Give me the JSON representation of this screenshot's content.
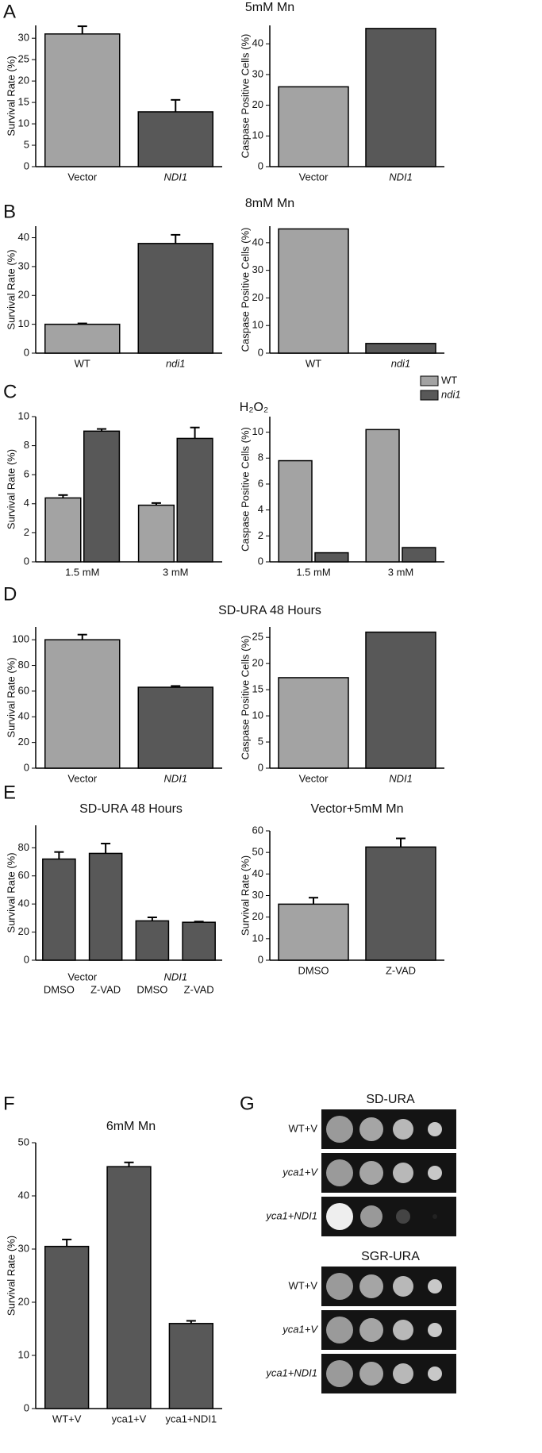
{
  "chart_data": [
    {
      "type": "bar",
      "panel": "A",
      "title": "5mM Mn",
      "ylabel": "Survival Rate (%)",
      "categories": [
        "Vector",
        "NDI1"
      ],
      "cat_italic": [
        false,
        true
      ],
      "values": [
        31,
        12.8
      ],
      "errors": [
        1.8,
        2.8
      ],
      "colors": [
        "#a3a3a3",
        "#585858"
      ],
      "ylim": [
        0,
        33
      ],
      "yticks": [
        0,
        5,
        10,
        15,
        20,
        25,
        30
      ]
    },
    {
      "type": "bar",
      "ylabel": "Caspase Positive Cells (%)",
      "categories": [
        "Vector",
        "NDI1"
      ],
      "cat_italic": [
        false,
        true
      ],
      "values": [
        26,
        45
      ],
      "colors": [
        "#a3a3a3",
        "#585858"
      ],
      "ylim": [
        0,
        46
      ],
      "yticks": [
        0,
        10,
        20,
        30,
        40
      ]
    },
    {
      "type": "bar",
      "panel": "B",
      "title": "8mM Mn",
      "ylabel": "Survival Rate (%)",
      "categories": [
        "WT",
        "ndi1"
      ],
      "cat_italic": [
        false,
        true
      ],
      "values": [
        10,
        38
      ],
      "errors": [
        0.3,
        3
      ],
      "colors": [
        "#a3a3a3",
        "#585858"
      ],
      "ylim": [
        0,
        44
      ],
      "yticks": [
        0,
        10,
        20,
        30,
        40
      ]
    },
    {
      "type": "bar",
      "ylabel": "Caspase Positive Cells (%)",
      "categories": [
        "WT",
        "ndi1"
      ],
      "cat_italic": [
        false,
        true
      ],
      "values": [
        45,
        3.5
      ],
      "colors": [
        "#a3a3a3",
        "#585858"
      ],
      "ylim": [
        0,
        46
      ],
      "yticks": [
        0,
        10,
        20,
        30,
        40
      ]
    },
    {
      "type": "grouped",
      "panel": "C",
      "title": "H₂O₂",
      "ylabel": "Survival Rate (%)",
      "categories": [
        "1.5 mM",
        "3 mM"
      ],
      "series": [
        {
          "name": "WT",
          "color": "#a3a3a3",
          "values": [
            4.4,
            3.9
          ],
          "errors": [
            0.2,
            0.15
          ]
        },
        {
          "name": "ndi1",
          "color": "#585858",
          "values": [
            9.0,
            8.5
          ],
          "errors": [
            0.15,
            0.75
          ]
        }
      ],
      "legend": "top-right",
      "ylim": [
        0,
        10
      ],
      "yticks": [
        0,
        2,
        4,
        6,
        8,
        10
      ]
    },
    {
      "type": "grouped",
      "ylabel": "Caspase Positive Cells (%)",
      "categories": [
        "1.5 mM",
        "3 mM"
      ],
      "series": [
        {
          "name": "WT",
          "color": "#a3a3a3",
          "values": [
            7.8,
            10.2
          ]
        },
        {
          "name": "ndi1",
          "color": "#585858",
          "values": [
            0.7,
            1.1
          ]
        }
      ],
      "ylim": [
        0,
        11.2
      ],
      "yticks": [
        0,
        2,
        4,
        6,
        8,
        10
      ]
    },
    {
      "type": "bar",
      "panel": "D",
      "title": "SD-URA 48 Hours",
      "ylabel": "Survival Rate (%)",
      "categories": [
        "Vector",
        "NDI1"
      ],
      "cat_italic": [
        false,
        true
      ],
      "values": [
        100,
        63
      ],
      "errors": [
        4,
        1
      ],
      "colors": [
        "#a3a3a3",
        "#585858"
      ],
      "ylim": [
        0,
        110
      ],
      "yticks": [
        0,
        20,
        40,
        60,
        80,
        100
      ]
    },
    {
      "type": "bar",
      "ylabel": "Caspase Positive Cells (%)",
      "categories": [
        "Vector",
        "NDI1"
      ],
      "cat_italic": [
        false,
        true
      ],
      "values": [
        17.3,
        26
      ],
      "colors": [
        "#a3a3a3",
        "#585858"
      ],
      "ylim": [
        0,
        27
      ],
      "yticks": [
        0,
        5,
        10,
        15,
        20,
        25
      ]
    },
    {
      "type": "bar",
      "panel": "E",
      "title": "SD-URA 48 Hours",
      "ylabel": "Survival Rate (%)",
      "categories": [
        "DMSO",
        "Z-VAD",
        "DMSO",
        "Z-VAD"
      ],
      "groups": [
        "Vector",
        "NDI1"
      ],
      "group_italic": [
        false,
        true
      ],
      "values": [
        72,
        76,
        28,
        27
      ],
      "errors": [
        5,
        7,
        2.5,
        0.5
      ],
      "colors": [
        "#585858",
        "#585858",
        "#585858",
        "#585858"
      ],
      "ylim": [
        0,
        96
      ],
      "yticks": [
        0,
        20,
        40,
        60,
        80
      ]
    },
    {
      "type": "bar",
      "title": "Vector+5mM Mn",
      "ylabel": "Survival Rate (%)",
      "categories": [
        "DMSO",
        "Z-VAD"
      ],
      "values": [
        26,
        52.5
      ],
      "errors": [
        3,
        4
      ],
      "colors": [
        "#a3a3a3",
        "#585858"
      ],
      "ylim": [
        0,
        60
      ],
      "yticks": [
        0,
        10,
        20,
        30,
        40,
        50,
        60
      ]
    },
    {
      "type": "bar",
      "panel": "F",
      "title": "6mM Mn",
      "ylabel": "Survival Rate (%)",
      "categories": [
        "WT+V",
        "yca1+V",
        "yca1+NDI1"
      ],
      "values": [
        30.5,
        45.5,
        16
      ],
      "errors": [
        1.3,
        0.8,
        0.5
      ],
      "colors": [
        "#585858",
        "#585858",
        "#585858"
      ],
      "ylim": [
        0,
        50
      ],
      "yticks": [
        0,
        10,
        20,
        30,
        40,
        50
      ]
    }
  ],
  "spot_assay": {
    "panel": "G",
    "sections": [
      {
        "title": "SD-URA",
        "rows": [
          "WT+V",
          "yca1+V",
          "yca1+NDI1"
        ]
      },
      {
        "title": "SGR-URA",
        "rows": [
          "WT+V",
          "yca1+V",
          "yca1+NDI1"
        ]
      }
    ]
  }
}
